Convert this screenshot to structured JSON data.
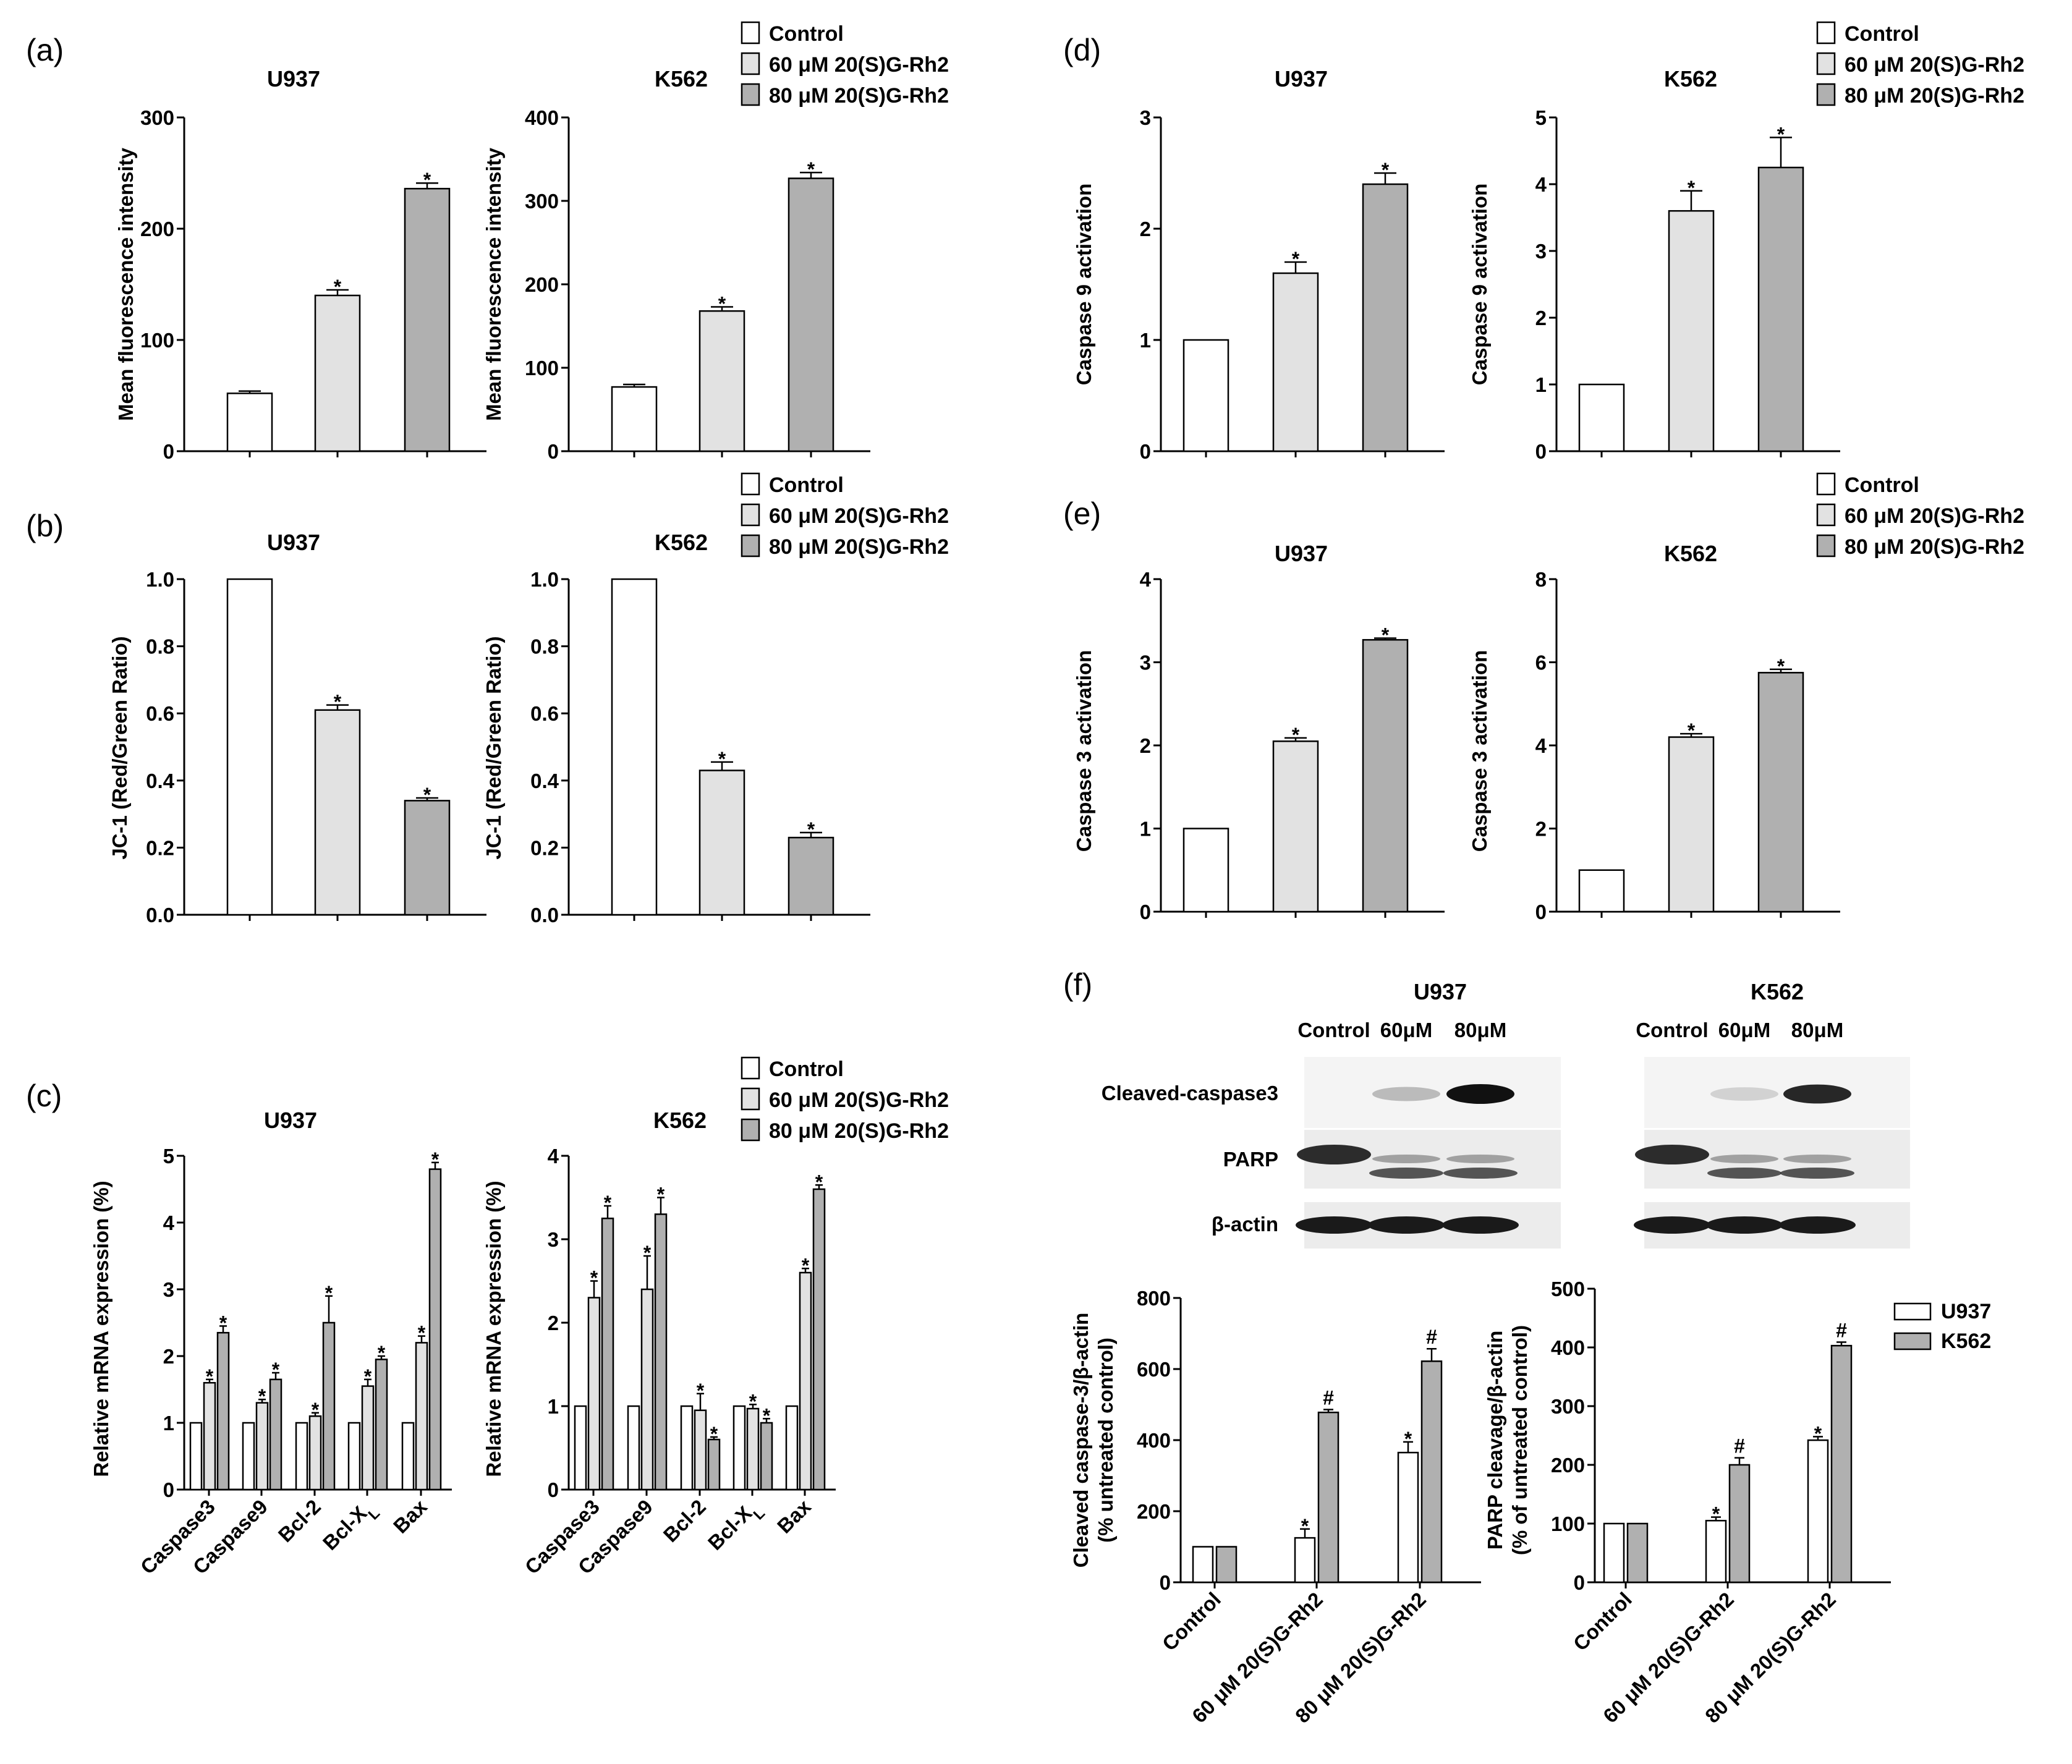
{
  "figure": {
    "panel_labels": [
      "(a)",
      "(b)",
      "(c)",
      "(d)",
      "(e)",
      "(f)"
    ],
    "legend_treatment": [
      "Control",
      "60 μM 20(S)G-Rh2",
      "80 μM 20(S)G-Rh2"
    ],
    "legend_cell": [
      "U937",
      "K562"
    ],
    "colors": {
      "control": "#ffffff",
      "g60": "#e2e2e2",
      "g80": "#b0b0b0",
      "u937": "#ffffff",
      "k562": "#b0b0b0"
    }
  },
  "chart_data": [
    {
      "id": "a1",
      "panel": "(a)",
      "type": "bar",
      "title": "U937",
      "ylabel": "Mean fluorescence intensity",
      "ylim": [
        0,
        300
      ],
      "yticks": [
        "0",
        "100",
        "200",
        "300"
      ],
      "categories": [
        "Control",
        "60 μM 20(S)G-Rh2",
        "80 μM 20(S)G-Rh2"
      ],
      "values": [
        52,
        140,
        236
      ],
      "errors": [
        2,
        5,
        5
      ],
      "marks": [
        "",
        "*",
        "*"
      ]
    },
    {
      "id": "a2",
      "panel": "(a)",
      "type": "bar",
      "title": "K562",
      "ylabel": "Mean fluorescence intensity",
      "ylim": [
        0,
        400
      ],
      "yticks": [
        "0",
        "100",
        "200",
        "300",
        "400"
      ],
      "categories": [
        "Control",
        "60 μM 20(S)G-Rh2",
        "80 μM 20(S)G-Rh2"
      ],
      "values": [
        77,
        168,
        327
      ],
      "errors": [
        3,
        5,
        7
      ],
      "marks": [
        "",
        "*",
        "*"
      ]
    },
    {
      "id": "b1",
      "panel": "(b)",
      "type": "bar",
      "title": "U937",
      "ylabel": "JC-1 (Red/Green Ratio)",
      "ylim": [
        0,
        1
      ],
      "yticks": [
        "0.0",
        "0.2",
        "0.4",
        "0.6",
        "0.8",
        "1.0"
      ],
      "categories": [
        "Control",
        "60 μM 20(S)G-Rh2",
        "80 μM 20(S)G-Rh2"
      ],
      "values": [
        1.0,
        0.61,
        0.34
      ],
      "errors": [
        0,
        0.015,
        0.008
      ],
      "marks": [
        "",
        "*",
        "*"
      ]
    },
    {
      "id": "b2",
      "panel": "(b)",
      "type": "bar",
      "title": "K562",
      "ylabel": "JC-1 (Red/Green Ratio)",
      "ylim": [
        0,
        1
      ],
      "yticks": [
        "0.0",
        "0.2",
        "0.4",
        "0.6",
        "0.8",
        "1.0"
      ],
      "categories": [
        "Control",
        "60 μM 20(S)G-Rh2",
        "80 μM 20(S)G-Rh2"
      ],
      "values": [
        1.0,
        0.43,
        0.23
      ],
      "errors": [
        0,
        0.025,
        0.015
      ],
      "marks": [
        "",
        "*",
        "*"
      ]
    },
    {
      "id": "c1",
      "panel": "(c)",
      "type": "grouped-bar",
      "title": "U937",
      "ylabel": "Relative mRNA expression (%)",
      "ylim": [
        0,
        5
      ],
      "yticks": [
        "0",
        "1",
        "2",
        "3",
        "4",
        "5"
      ],
      "categories": [
        "Caspase3",
        "Caspase9",
        "Bcl-2",
        "Bcl-X",
        "Bax"
      ],
      "category_subscripts": [
        "",
        "",
        "",
        "L",
        ""
      ],
      "series": [
        {
          "name": "Control",
          "values": [
            1,
            1,
            1,
            1,
            1
          ],
          "errors": [
            0,
            0,
            0,
            0,
            0
          ],
          "marks": [
            "",
            "",
            "",
            "",
            ""
          ]
        },
        {
          "name": "60 μM 20(S)G-Rh2",
          "values": [
            1.6,
            1.3,
            1.1,
            1.55,
            2.2
          ],
          "errors": [
            0.05,
            0.05,
            0.05,
            0.1,
            0.1
          ],
          "marks": [
            "*",
            "*",
            "*",
            "*",
            "*"
          ]
        },
        {
          "name": "80 μM 20(S)G-Rh2",
          "values": [
            2.35,
            1.65,
            2.5,
            1.95,
            4.8
          ],
          "errors": [
            0.1,
            0.1,
            0.4,
            0.05,
            0.1
          ],
          "marks": [
            "*",
            "*",
            "*",
            "*",
            "*"
          ]
        }
      ]
    },
    {
      "id": "c2",
      "panel": "(c)",
      "type": "grouped-bar",
      "title": "K562",
      "ylabel": "Relative mRNA expression (%)",
      "ylim": [
        0,
        4
      ],
      "yticks": [
        "0",
        "1",
        "2",
        "3",
        "4"
      ],
      "categories": [
        "Caspase3",
        "Caspase9",
        "Bcl-2",
        "Bcl-X",
        "Bax"
      ],
      "category_subscripts": [
        "",
        "",
        "",
        "L",
        ""
      ],
      "series": [
        {
          "name": "Control",
          "values": [
            1,
            1,
            1,
            1,
            1
          ],
          "errors": [
            0,
            0,
            0,
            0,
            0
          ],
          "marks": [
            "",
            "",
            "",
            "",
            ""
          ]
        },
        {
          "name": "60 μM 20(S)G-Rh2",
          "values": [
            2.3,
            2.4,
            0.95,
            0.97,
            2.6
          ],
          "errors": [
            0.2,
            0.4,
            0.2,
            0.05,
            0.05
          ],
          "marks": [
            "*",
            "*",
            "*",
            "*",
            "*"
          ]
        },
        {
          "name": "80 μM 20(S)G-Rh2",
          "values": [
            3.25,
            3.3,
            0.6,
            0.8,
            3.6
          ],
          "errors": [
            0.15,
            0.2,
            0.03,
            0.05,
            0.05
          ],
          "marks": [
            "*",
            "*",
            "*",
            "*",
            "*"
          ]
        }
      ]
    },
    {
      "id": "d1",
      "panel": "(d)",
      "type": "bar",
      "title": "U937",
      "ylabel": "Caspase 9 activation",
      "ylim": [
        0,
        3
      ],
      "yticks": [
        "0",
        "1",
        "2",
        "3"
      ],
      "categories": [
        "Control",
        "60 μM 20(S)G-Rh2",
        "80 μM 20(S)G-Rh2"
      ],
      "values": [
        1.0,
        1.6,
        2.4
      ],
      "errors": [
        0,
        0.1,
        0.1
      ],
      "marks": [
        "",
        "*",
        "*"
      ]
    },
    {
      "id": "d2",
      "panel": "(d)",
      "type": "bar",
      "title": "K562",
      "ylabel": "Caspase 9 activation",
      "ylim": [
        0,
        5
      ],
      "yticks": [
        "0",
        "1",
        "2",
        "3",
        "4",
        "5"
      ],
      "categories": [
        "Control",
        "60 μM 20(S)G-Rh2",
        "80 μM 20(S)G-Rh2"
      ],
      "values": [
        1.0,
        3.6,
        4.25
      ],
      "errors": [
        0,
        0.3,
        0.45
      ],
      "marks": [
        "",
        "*",
        "*"
      ]
    },
    {
      "id": "e1",
      "panel": "(e)",
      "type": "bar",
      "title": "U937",
      "ylabel": "Caspase 3 activation",
      "ylim": [
        0,
        4
      ],
      "yticks": [
        "0",
        "1",
        "2",
        "3",
        "4"
      ],
      "categories": [
        "Control",
        "60 μM 20(S)G-Rh2",
        "80 μM 20(S)G-Rh2"
      ],
      "values": [
        1.0,
        2.05,
        3.27
      ],
      "errors": [
        0,
        0.04,
        0.02
      ],
      "marks": [
        "",
        "*",
        "*"
      ]
    },
    {
      "id": "e2",
      "panel": "(e)",
      "type": "bar",
      "title": "K562",
      "ylabel": "Caspase 3 activation",
      "ylim": [
        0,
        8
      ],
      "yticks": [
        "0",
        "2",
        "4",
        "6",
        "8"
      ],
      "categories": [
        "Control",
        "60 μM 20(S)G-Rh2",
        "80 μM 20(S)G-Rh2"
      ],
      "values": [
        1.0,
        4.2,
        5.75
      ],
      "errors": [
        0,
        0.08,
        0.08
      ],
      "marks": [
        "",
        "*",
        "*"
      ]
    },
    {
      "id": "f1",
      "panel": "(f)",
      "type": "grouped-bar",
      "title": "",
      "ylabel": "Cleaved caspase-3/β-actin",
      "ylabel2": "(% untreated control)",
      "ylim": [
        0,
        800
      ],
      "yticks": [
        "0",
        "200",
        "400",
        "600",
        "800"
      ],
      "categories": [
        "Control",
        "60 μM 20(S)G-Rh2",
        "80 μM 20(S)G-Rh2"
      ],
      "series": [
        {
          "name": "U937",
          "values": [
            100,
            125,
            365
          ],
          "errors": [
            0,
            25,
            30
          ],
          "marks": [
            "",
            "*",
            "*"
          ]
        },
        {
          "name": "K562",
          "values": [
            100,
            478,
            622
          ],
          "errors": [
            0,
            8,
            35
          ],
          "marks": [
            "",
            "#",
            "#"
          ]
        }
      ]
    },
    {
      "id": "f2",
      "panel": "(f)",
      "type": "grouped-bar",
      "title": "",
      "ylabel": "PARP cleavage/β-actin",
      "ylabel2": "(% of untreated control)",
      "ylim": [
        0,
        500
      ],
      "yticks": [
        "0",
        "100",
        "200",
        "300",
        "400",
        "500"
      ],
      "categories": [
        "Control",
        "60 μM 20(S)G-Rh2",
        "80 μM 20(S)G-Rh2"
      ],
      "series": [
        {
          "name": "U937",
          "values": [
            100,
            105,
            242
          ],
          "errors": [
            0,
            6,
            6
          ],
          "marks": [
            "",
            "*",
            "*"
          ]
        },
        {
          "name": "K562",
          "values": [
            100,
            200,
            403
          ],
          "errors": [
            0,
            12,
            6
          ],
          "marks": [
            "",
            "#",
            "#"
          ]
        }
      ]
    }
  ],
  "blot": {
    "cells": [
      "U937",
      "K562"
    ],
    "lanes": [
      "Control",
      "60μM",
      "80μM"
    ],
    "rows": [
      "Cleaved-caspase3",
      "PARP",
      "β-actin"
    ]
  }
}
